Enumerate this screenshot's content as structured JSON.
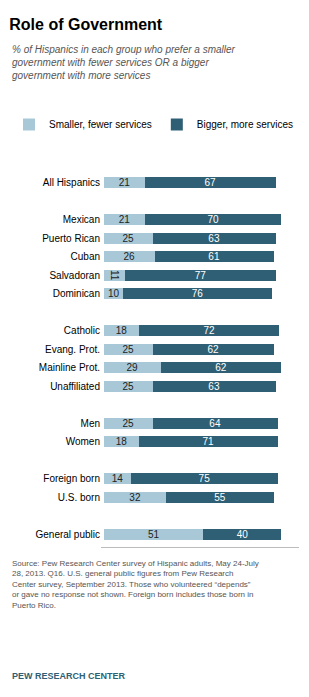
{
  "chart_data": {
    "type": "bar",
    "title": "Role of Government",
    "subtitle": "% of Hispanics in each group who prefer a smaller\ngovernment with fewer services OR a bigger\ngovernment with more services",
    "orientation": "horizontal",
    "stacked": true,
    "data_labels": true,
    "tick_labels": "y",
    "grid": false,
    "legend": "top",
    "categories": [
      "All Hispanics",
      null,
      "Mexican",
      "Puerto Rican",
      "Cuban",
      "Salvadoran",
      "Dominican",
      null,
      "Catholic",
      "Evang. Prot.",
      "Mainline Prot.",
      "Unaffiliated",
      null,
      "Men",
      "Women",
      null,
      "Foreign born",
      "U.S. born",
      null,
      "General public"
    ],
    "series": [
      {
        "name": "Smaller, fewer services",
        "color": "#a8c8d8",
        "values": [
          21,
          null,
          21,
          25,
          26,
          11,
          10,
          null,
          18,
          25,
          29,
          25,
          null,
          25,
          18,
          null,
          14,
          32,
          null,
          51
        ]
      },
      {
        "name": "Bigger, more services",
        "color": "#2e5f74",
        "values": [
          67,
          null,
          70,
          63,
          61,
          77,
          76,
          null,
          72,
          62,
          62,
          63,
          null,
          64,
          71,
          null,
          75,
          55,
          null,
          40
        ]
      }
    ],
    "xlim": [
      -1.5,
      100
    ],
    "annotations": [
      "Source: Pew Research Center survey of Hispanic adults, May 24-July\n28, 2013. Q16. U.S. general public figures from Pew Research\nCenter survey, September 2013. Those who volunteered “depends”\nor gave no response not shown. Foreign born includes those born in\nPuerto Rico.",
      "PEW RESEARCH CENTER"
    ]
  }
}
